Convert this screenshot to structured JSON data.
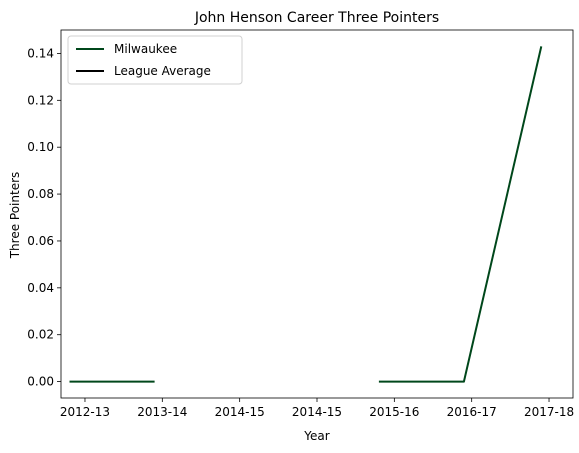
{
  "chart_data": {
    "type": "line",
    "title": "John Henson  Career Three Pointers",
    "xlabel": "Year",
    "ylabel": "Three Pointers",
    "x": [
      "2012-13",
      "2013-14",
      "2014-15",
      "2014-15",
      "2015-16",
      "2016-17",
      "2017-18"
    ],
    "series": [
      {
        "name": "Milwaukee",
        "color": "#00471b",
        "segments": [
          [
            {
              "x": -0.2,
              "y": 0.0
            },
            {
              "x": 0.9,
              "y": 0.0
            }
          ],
          [
            {
              "x": 3.8,
              "y": 0.0
            },
            {
              "x": 4.9,
              "y": 0.0
            },
            {
              "x": 5.9,
              "y": 0.143
            }
          ]
        ]
      },
      {
        "name": "League Average",
        "color": "#000000",
        "segments": []
      }
    ],
    "xlim": [
      -0.31,
      6.31
    ],
    "ylim": [
      -0.007,
      0.15
    ],
    "yticks": [
      "0.00",
      "0.02",
      "0.04",
      "0.06",
      "0.08",
      "0.10",
      "0.12",
      "0.14"
    ],
    "ytick_values": [
      0.0,
      0.02,
      0.04,
      0.06,
      0.08,
      0.1,
      0.12,
      0.14
    ],
    "grid": false,
    "legend_position": "upper-left"
  }
}
